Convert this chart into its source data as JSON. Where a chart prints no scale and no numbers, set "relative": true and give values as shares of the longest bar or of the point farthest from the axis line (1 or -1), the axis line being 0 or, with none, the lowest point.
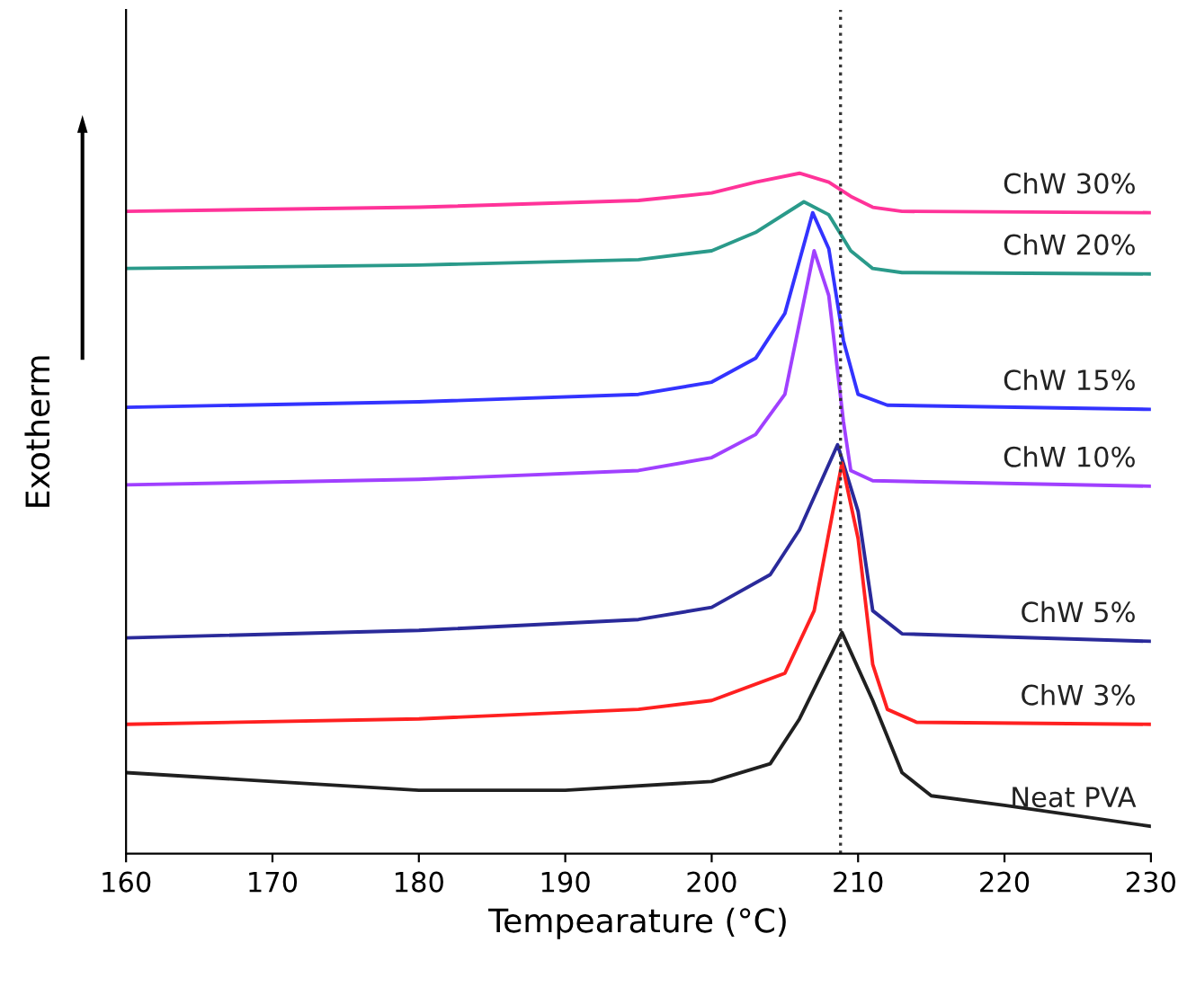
{
  "chart_data": {
    "type": "line",
    "relative": true,
    "xlabel": "Tempearature (°C)",
    "ylabel": "Exotherm",
    "xlim": [
      160,
      230
    ],
    "xticks": [
      160,
      170,
      180,
      190,
      200,
      210,
      220,
      230
    ],
    "legend": false,
    "grid": false,
    "marker": "none",
    "line_style": "solid",
    "ref_lines": [
      {
        "axis": "x",
        "value": 208.8,
        "line_style": "dotted",
        "color": "#333333"
      }
    ],
    "series": [
      {
        "name": "ChW 30%",
        "color": "#ff3399",
        "x": [
          160,
          180,
          195,
          200,
          203,
          206,
          208,
          209.5,
          211,
          213,
          230
        ],
        "values": [
          0.944,
          0.95,
          0.96,
          0.971,
          0.987,
          1.0,
          0.987,
          0.966,
          0.95,
          0.944,
          0.942
        ]
      },
      {
        "name": "ChW 20%",
        "color": "#2a9a8a",
        "x": [
          160,
          180,
          195,
          200,
          203,
          206.3,
          208,
          209.5,
          211,
          213,
          230
        ],
        "values": [
          0.86,
          0.865,
          0.873,
          0.886,
          0.913,
          0.958,
          0.939,
          0.886,
          0.86,
          0.854,
          0.852
        ]
      },
      {
        "name": "ChW 15%",
        "color": "#3333ff",
        "x": [
          160,
          180,
          195,
          200,
          203,
          205,
          206.9,
          208,
          209,
          210,
          212,
          230
        ],
        "values": [
          0.656,
          0.664,
          0.675,
          0.693,
          0.728,
          0.794,
          0.942,
          0.889,
          0.754,
          0.675,
          0.659,
          0.653
        ]
      },
      {
        "name": "ChW 10%",
        "color": "#a040ff",
        "x": [
          160,
          180,
          195,
          200,
          203,
          205,
          207,
          208,
          209,
          209.5,
          211,
          230
        ],
        "values": [
          0.542,
          0.55,
          0.563,
          0.582,
          0.616,
          0.675,
          0.886,
          0.82,
          0.635,
          0.563,
          0.548,
          0.54
        ]
      },
      {
        "name": "ChW 5%",
        "color": "#2a2a9a",
        "x": [
          160,
          180,
          195,
          200,
          204,
          206,
          208.6,
          210,
          211,
          213,
          230
        ],
        "values": [
          0.317,
          0.328,
          0.344,
          0.362,
          0.41,
          0.476,
          0.601,
          0.503,
          0.357,
          0.323,
          0.312
        ]
      },
      {
        "name": "ChW 3%",
        "color": "#ff2020",
        "x": [
          160,
          180,
          195,
          200,
          205,
          207,
          208.9,
          210,
          211,
          212,
          214,
          230
        ],
        "values": [
          0.19,
          0.198,
          0.212,
          0.225,
          0.265,
          0.357,
          0.574,
          0.463,
          0.278,
          0.212,
          0.193,
          0.19
        ]
      },
      {
        "name": "Neat PVA",
        "color": "#202020",
        "x": [
          160,
          170,
          180,
          190,
          200,
          204,
          206,
          208.9,
          211,
          213,
          215,
          220,
          230
        ],
        "values": [
          0.119,
          0.106,
          0.093,
          0.093,
          0.106,
          0.132,
          0.198,
          0.325,
          0.225,
          0.119,
          0.085,
          0.071,
          0.04
        ]
      }
    ]
  }
}
